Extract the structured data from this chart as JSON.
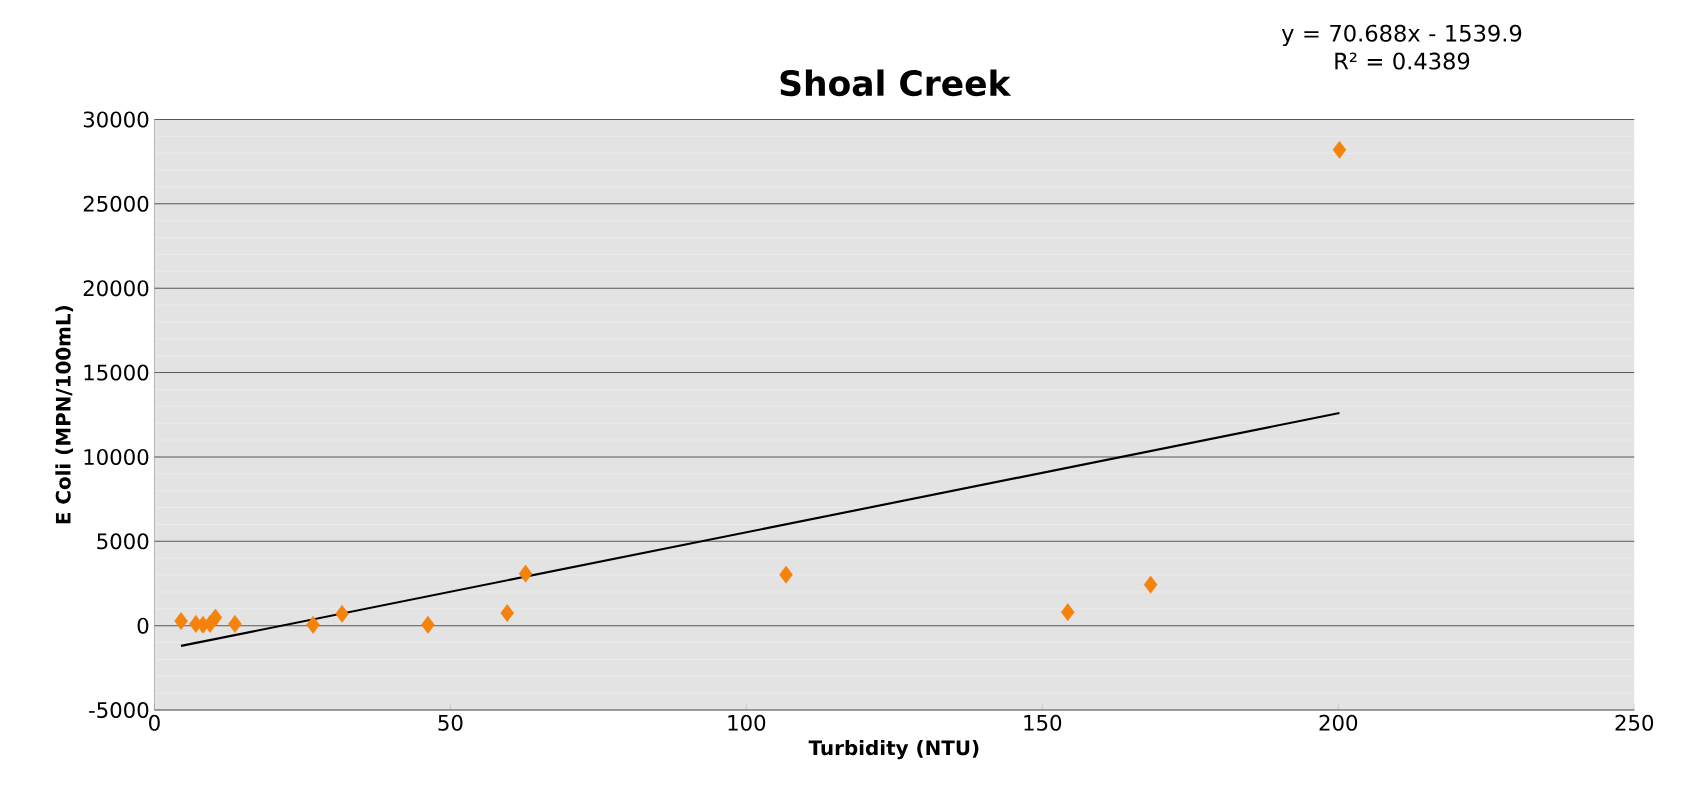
{
  "chart_data": {
    "type": "scatter",
    "title": "Shoal Creek",
    "xlabel": "Turbidity (NTU)",
    "ylabel": "E Coli (MPN/100mL)",
    "x": [
      4.5,
      7,
      8.2,
      9.4,
      10.3,
      13.6,
      26.8,
      31.7,
      46.2,
      59.6,
      62.7,
      106.7,
      154.3,
      168.3,
      200.2
    ],
    "series": [
      {
        "color": "#f5820a",
        "values": [
          270,
          100,
          50,
          100,
          480,
          100,
          50,
          700,
          50,
          750,
          3080,
          3020,
          800,
          2430,
          28200
        ]
      },
      {
        "type": "line",
        "color": "#000000",
        "x": [
          4.5,
          200.2
        ],
        "values": [
          -1200,
          12600
        ],
        "marker": "none"
      }
    ],
    "marker": "diamond",
    "grid": "y",
    "xlim": [
      0,
      250
    ],
    "xticks": [
      0,
      50,
      100,
      150,
      200,
      250
    ],
    "ylim": [
      -5000,
      30000
    ],
    "yticks": [
      -5000,
      0,
      5000,
      10000,
      15000,
      20000,
      25000,
      30000
    ],
    "annotations": [
      "y = 70.688x - 1539.9\nR² = 0.4389"
    ]
  }
}
